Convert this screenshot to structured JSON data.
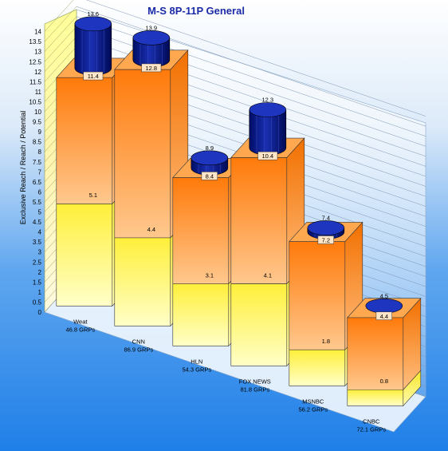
{
  "chart_data": {
    "type": "bar",
    "title": "M-S 8P-11P General",
    "ylabel": "Exclusive Reach / Reach / Potential",
    "xlabel": "",
    "ylim": [
      0,
      14
    ],
    "yticks": [
      "0",
      "0.5",
      "1",
      "1.5",
      "2",
      "2.5",
      "3",
      "3.5",
      "4",
      "4.5",
      "5",
      "5.5",
      "6",
      "6.5",
      "7",
      "7.5",
      "8",
      "8.5",
      "9",
      "9.5",
      "10",
      "10.5",
      "11",
      "11.5",
      "12",
      "12.5",
      "13",
      "13.5",
      "14"
    ],
    "categories": [
      {
        "name": "Weat",
        "grps": "46.8 GRPs"
      },
      {
        "name": "CNN",
        "grps": "86.9 GRPs"
      },
      {
        "name": "HLN",
        "grps": "54.3 GRPs"
      },
      {
        "name": "FOX NEWS",
        "grps": "81.8 GRPs"
      },
      {
        "name": "MSNBC",
        "grps": "56.2 GRPs"
      },
      {
        "name": "CNBC",
        "grps": "72.1 GRPs"
      }
    ],
    "series": [
      {
        "values": [
          5.1,
          4.4,
          3.1,
          4.1,
          1.8,
          0.8
        ],
        "labels": [
          "5.1",
          "4.4",
          "3.1",
          "4.1",
          "1.8",
          "0.8"
        ]
      },
      {
        "values": [
          11.4,
          12.8,
          8.4,
          10.4,
          7.2,
          4.4
        ],
        "labels": [
          "11.4",
          "12.8",
          "8.4",
          "10.4",
          "7.2",
          "4.4"
        ]
      },
      {
        "values": [
          13.6,
          13.9,
          8.9,
          12.3,
          7.4,
          4.5
        ],
        "labels": [
          "13.6",
          "13.9",
          "8.9",
          "12.3",
          "7.4",
          "4.5"
        ]
      }
    ],
    "colors": {
      "bg_top": "#ffffff",
      "bg_bottom": "#1f7fe8",
      "exclusive": "#ffff55",
      "reach": "#ff8a1e",
      "potential": "#0a1a8c",
      "title": "#1a2aa8"
    },
    "grid": true
  }
}
